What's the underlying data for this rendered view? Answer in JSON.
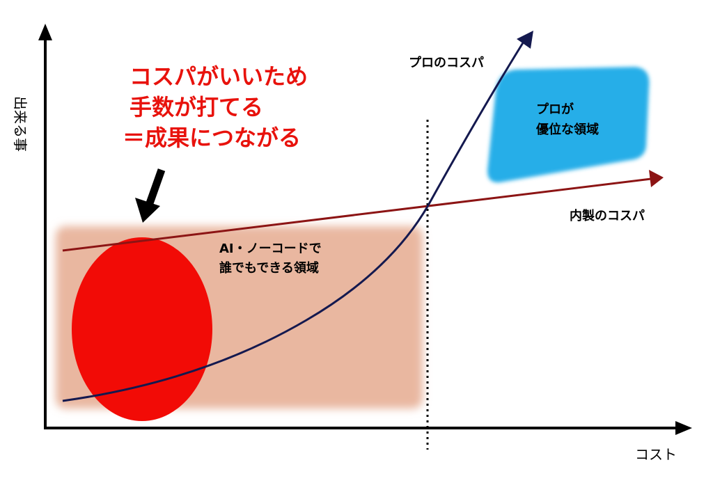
{
  "axes": {
    "y_label": "出来る事",
    "x_label": "コスト"
  },
  "callout": {
    "line1": "コスパがいいため",
    "line2": "手数が打てる",
    "line3": "＝成果につながる",
    "color": "#e8120c"
  },
  "regions": {
    "ai_nocode": {
      "line1": "AI・ノーコードで",
      "line2": "誰でもできる領域",
      "color": "#e9b7a0"
    },
    "pro": {
      "line1": "プロが",
      "line2": "優位な領域",
      "color": "#27aee8"
    },
    "highlight_color": "#f20b06"
  },
  "curves": {
    "pro_cost_performance": {
      "label": "プロのコスパ",
      "color": "#14194f"
    },
    "inhouse_cost_performance": {
      "label": "内製のコスパ",
      "color": "#8c1414"
    }
  }
}
